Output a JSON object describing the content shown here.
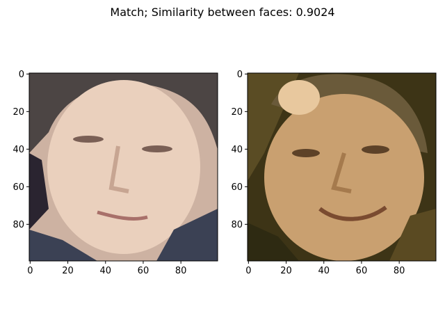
{
  "figure": {
    "title": "Match; Similarity between faces: 0.9024"
  },
  "panels": [
    {
      "image_description": "face-photo-1",
      "x_ticks": [
        "0",
        "20",
        "40",
        "60",
        "80"
      ],
      "y_ticks": [
        "0",
        "20",
        "40",
        "60",
        "80"
      ],
      "x_range": [
        0,
        99
      ],
      "y_range": [
        0,
        99
      ],
      "palette": {
        "bg": "#cdb2a2",
        "dark": "#3a3340",
        "skin": "#ead0bd",
        "shadow": "#b59583",
        "hair": "#4c4544",
        "jacket": "#3b4154"
      }
    },
    {
      "image_description": "face-photo-2",
      "x_ticks": [
        "0",
        "20",
        "40",
        "60",
        "80"
      ],
      "y_ticks": [
        "0",
        "20",
        "40",
        "60",
        "80"
      ],
      "x_range": [
        0,
        99
      ],
      "y_range": [
        0,
        99
      ],
      "palette": {
        "bg": "#4a3f1e",
        "dark": "#2e2a12",
        "skin": "#c9a070",
        "shadow": "#9b6f45",
        "hair": "#6a5a3a",
        "jacket": "#5a4a22"
      }
    }
  ]
}
